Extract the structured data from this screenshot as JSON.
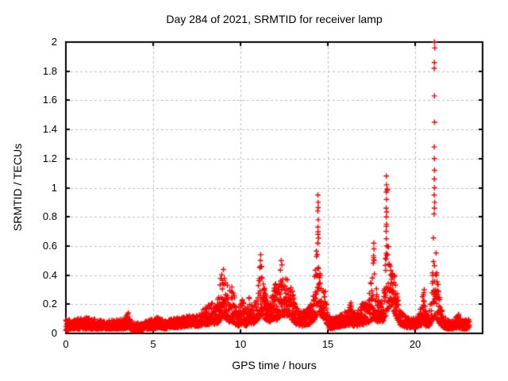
{
  "chart_data": {
    "type": "scatter",
    "title": "Day 284 of 2021, SRMTID for receiver lamp",
    "xlabel": "GPS time / hours",
    "ylabel": "SRMTID / TECUs",
    "xlim": [
      0,
      23.86
    ],
    "ylim": [
      0,
      2
    ],
    "xticks": [
      0,
      5,
      10,
      15,
      20
    ],
    "xtick_labels": [
      "0",
      "5",
      "10",
      "15",
      "20"
    ],
    "yticks": [
      0,
      0.2,
      0.4,
      0.6,
      0.8,
      1,
      1.2,
      1.4,
      1.6,
      1.8,
      2
    ],
    "ytick_labels": [
      "0",
      "0.2",
      "0.4",
      "0.6",
      "0.8",
      "1",
      "1.2",
      "1.4",
      "1.6",
      "1.8",
      "2"
    ],
    "grid": true,
    "legend": "none",
    "marker": "plus",
    "marker_color": "#ff0000",
    "grid_color": "#bdbdbd",
    "border_color": "#000000",
    "text_color": "#000000",
    "series_name": "SRMTID",
    "sample_interval_hours": 0.008333,
    "seed": 284,
    "notable_peaks": [
      {
        "x": 9.0,
        "y": 0.46
      },
      {
        "x": 11.15,
        "y": 0.55
      },
      {
        "x": 12.35,
        "y": 0.5
      },
      {
        "x": 14.45,
        "y": 0.95
      },
      {
        "x": 17.65,
        "y": 0.62
      },
      {
        "x": 18.35,
        "y": 1.08
      },
      {
        "x": 21.1,
        "y": 2.0
      }
    ],
    "profile": [
      [
        0.0,
        0.02,
        0.1
      ],
      [
        0.3,
        0.03,
        0.1
      ],
      [
        0.8,
        0.03,
        0.1
      ],
      [
        1.3,
        0.03,
        0.11
      ],
      [
        1.8,
        0.03,
        0.09
      ],
      [
        2.3,
        0.03,
        0.09
      ],
      [
        2.8,
        0.03,
        0.09
      ],
      [
        3.3,
        0.03,
        0.1
      ],
      [
        3.55,
        0.04,
        0.14
      ],
      [
        3.8,
        0.02,
        0.08
      ],
      [
        4.3,
        0.02,
        0.07
      ],
      [
        4.7,
        0.03,
        0.09
      ],
      [
        5.0,
        0.03,
        0.1
      ],
      [
        5.3,
        0.04,
        0.12
      ],
      [
        5.7,
        0.03,
        0.09
      ],
      [
        6.0,
        0.04,
        0.1
      ],
      [
        6.5,
        0.04,
        0.11
      ],
      [
        7.0,
        0.05,
        0.12
      ],
      [
        7.5,
        0.05,
        0.13
      ],
      [
        7.8,
        0.05,
        0.16
      ],
      [
        8.0,
        0.06,
        0.18
      ],
      [
        8.2,
        0.06,
        0.22
      ],
      [
        8.35,
        0.07,
        0.24
      ],
      [
        8.5,
        0.06,
        0.18
      ],
      [
        8.7,
        0.07,
        0.25
      ],
      [
        8.9,
        0.1,
        0.44
      ],
      [
        9.0,
        0.12,
        0.46
      ],
      [
        9.15,
        0.1,
        0.4
      ],
      [
        9.3,
        0.08,
        0.35
      ],
      [
        9.5,
        0.08,
        0.33
      ],
      [
        9.7,
        0.06,
        0.25
      ],
      [
        9.9,
        0.05,
        0.18
      ],
      [
        10.1,
        0.06,
        0.24
      ],
      [
        10.3,
        0.05,
        0.18
      ],
      [
        10.5,
        0.07,
        0.26
      ],
      [
        10.7,
        0.06,
        0.2
      ],
      [
        10.9,
        0.08,
        0.25
      ],
      [
        11.05,
        0.1,
        0.4
      ],
      [
        11.15,
        0.12,
        0.55
      ],
      [
        11.3,
        0.1,
        0.35
      ],
      [
        11.5,
        0.09,
        0.26
      ],
      [
        11.7,
        0.08,
        0.22
      ],
      [
        11.85,
        0.09,
        0.3
      ],
      [
        11.95,
        0.1,
        0.42
      ],
      [
        12.1,
        0.09,
        0.28
      ],
      [
        12.25,
        0.11,
        0.45
      ],
      [
        12.35,
        0.12,
        0.5
      ],
      [
        12.5,
        0.12,
        0.4
      ],
      [
        12.65,
        0.12,
        0.38
      ],
      [
        12.8,
        0.12,
        0.36
      ],
      [
        13.0,
        0.08,
        0.3
      ],
      [
        13.2,
        0.06,
        0.2
      ],
      [
        13.5,
        0.05,
        0.15
      ],
      [
        13.8,
        0.06,
        0.18
      ],
      [
        14.0,
        0.06,
        0.2
      ],
      [
        14.2,
        0.08,
        0.28
      ],
      [
        14.35,
        0.12,
        0.7
      ],
      [
        14.45,
        0.15,
        0.95
      ],
      [
        14.55,
        0.12,
        0.55
      ],
      [
        14.7,
        0.1,
        0.35
      ],
      [
        14.85,
        0.1,
        0.3
      ],
      [
        15.0,
        0.04,
        0.15
      ],
      [
        15.2,
        0.03,
        0.1
      ],
      [
        15.5,
        0.04,
        0.12
      ],
      [
        15.8,
        0.05,
        0.13
      ],
      [
        16.1,
        0.05,
        0.16
      ],
      [
        16.3,
        0.06,
        0.21
      ],
      [
        16.5,
        0.05,
        0.15
      ],
      [
        16.7,
        0.05,
        0.16
      ],
      [
        16.9,
        0.06,
        0.2
      ],
      [
        17.1,
        0.06,
        0.22
      ],
      [
        17.3,
        0.07,
        0.25
      ],
      [
        17.5,
        0.09,
        0.4
      ],
      [
        17.65,
        0.1,
        0.62
      ],
      [
        17.8,
        0.08,
        0.3
      ],
      [
        18.0,
        0.08,
        0.22
      ],
      [
        18.2,
        0.08,
        0.25
      ],
      [
        18.32,
        0.12,
        0.75
      ],
      [
        18.4,
        0.15,
        1.05
      ],
      [
        18.5,
        0.18,
        0.5
      ],
      [
        18.65,
        0.18,
        0.52
      ],
      [
        18.8,
        0.14,
        0.42
      ],
      [
        18.95,
        0.1,
        0.3
      ],
      [
        19.1,
        0.06,
        0.18
      ],
      [
        19.4,
        0.04,
        0.12
      ],
      [
        19.7,
        0.04,
        0.1
      ],
      [
        20.0,
        0.04,
        0.11
      ],
      [
        20.25,
        0.05,
        0.16
      ],
      [
        20.45,
        0.06,
        0.28
      ],
      [
        20.6,
        0.05,
        0.16
      ],
      [
        20.8,
        0.05,
        0.16
      ],
      [
        20.95,
        0.08,
        0.3
      ],
      [
        21.05,
        0.1,
        0.7
      ],
      [
        21.12,
        0.12,
        0.78
      ],
      [
        21.2,
        0.1,
        0.6
      ],
      [
        21.3,
        0.08,
        0.35
      ],
      [
        21.45,
        0.06,
        0.2
      ],
      [
        21.6,
        0.04,
        0.13
      ],
      [
        21.9,
        0.03,
        0.09
      ],
      [
        22.2,
        0.03,
        0.1
      ],
      [
        22.45,
        0.04,
        0.13
      ],
      [
        22.7,
        0.03,
        0.1
      ],
      [
        22.9,
        0.03,
        0.1
      ],
      [
        23.1,
        0.04,
        0.12
      ]
    ],
    "outliers": [
      [
        3.58,
        0.14
      ],
      [
        11.14,
        0.5
      ],
      [
        11.16,
        0.54
      ],
      [
        12.33,
        0.5
      ],
      [
        12.37,
        0.47
      ],
      [
        14.42,
        0.62
      ],
      [
        14.44,
        0.68
      ],
      [
        14.43,
        0.73
      ],
      [
        14.45,
        0.78
      ],
      [
        14.42,
        0.84
      ],
      [
        14.44,
        0.9
      ],
      [
        14.43,
        0.95
      ],
      [
        16.32,
        0.21
      ],
      [
        17.62,
        0.52
      ],
      [
        17.64,
        0.58
      ],
      [
        17.63,
        0.62
      ],
      [
        18.34,
        0.55
      ],
      [
        18.36,
        0.6
      ],
      [
        18.35,
        0.65
      ],
      [
        18.34,
        0.7
      ],
      [
        18.36,
        0.75
      ],
      [
        18.35,
        0.8
      ],
      [
        18.34,
        0.86
      ],
      [
        18.36,
        0.92
      ],
      [
        18.35,
        0.97
      ],
      [
        18.36,
        1.02
      ],
      [
        18.35,
        1.08
      ],
      [
        20.5,
        0.28
      ],
      [
        20.52,
        0.3
      ],
      [
        21.08,
        0.82
      ],
      [
        21.1,
        0.86
      ],
      [
        21.12,
        0.9
      ],
      [
        21.09,
        0.95
      ],
      [
        21.11,
        1.0
      ],
      [
        21.1,
        1.06
      ],
      [
        21.11,
        1.12
      ],
      [
        21.1,
        1.2
      ],
      [
        21.09,
        1.28
      ],
      [
        21.11,
        1.45
      ],
      [
        21.1,
        1.63
      ],
      [
        21.09,
        1.82
      ],
      [
        21.1,
        1.86
      ],
      [
        21.12,
        1.96
      ],
      [
        21.1,
        2.0
      ],
      [
        22.5,
        0.13
      ]
    ]
  }
}
